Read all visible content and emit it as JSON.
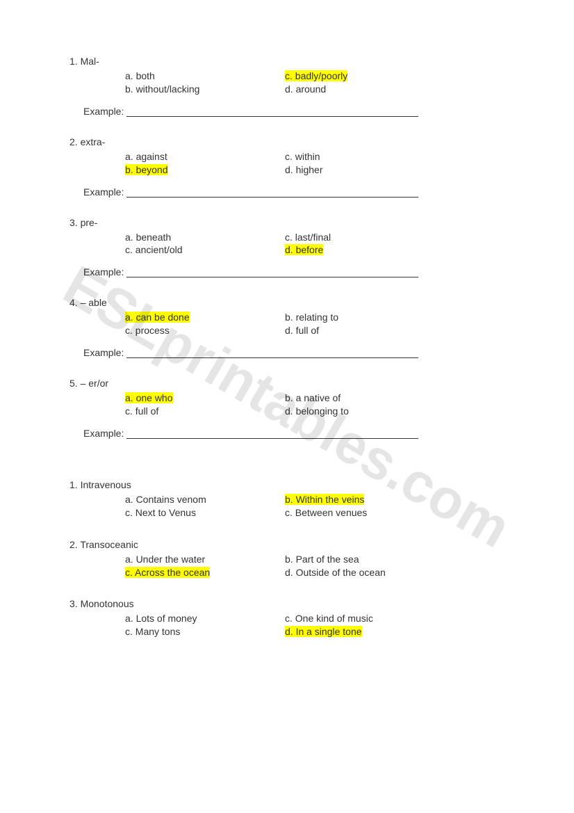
{
  "watermark": "ESLprintables.com",
  "sectionA": [
    {
      "num": "1.",
      "title": "Mal-",
      "left": [
        {
          "text": "a. both",
          "hl": false
        },
        {
          "text": "b. without/lacking",
          "hl": false
        }
      ],
      "right": [
        {
          "text": "c. badly/poorly",
          "hl": true
        },
        {
          "text": "d. around",
          "hl": false
        }
      ],
      "exampleLabel": "Example:"
    },
    {
      "num": "2.",
      "title": "extra-",
      "left": [
        {
          "text": "a. against",
          "hl": false
        },
        {
          "text": "b. beyond",
          "hl": true
        }
      ],
      "right": [
        {
          "text": "c. within",
          "hl": false
        },
        {
          "text": "d. higher",
          "hl": false
        }
      ],
      "exampleLabel": "Example:"
    },
    {
      "num": "3.",
      "title": "pre-",
      "left": [
        {
          "text": "a. beneath",
          "hl": false
        },
        {
          "text": "c. ancient/old",
          "hl": false
        }
      ],
      "right": [
        {
          "text": "c. last/final",
          "hl": false
        },
        {
          "text": "d. before",
          "hl": true
        }
      ],
      "exampleLabel": "Example:"
    },
    {
      "num": "4.",
      "title": "– able",
      "left": [
        {
          "text": "a. can be done",
          "hl": true
        },
        {
          "text": "c. process",
          "hl": false
        }
      ],
      "right": [
        {
          "text": "b. relating to",
          "hl": false
        },
        {
          "text": "d. full of",
          "hl": false
        }
      ],
      "exampleLabel": "Example:"
    },
    {
      "num": "5.",
      "title": " – er/or",
      "left": [
        {
          "text": "a. one who",
          "hl": true
        },
        {
          "text": "c. full of",
          "hl": false
        }
      ],
      "right": [
        {
          "text": "b. a native of",
          "hl": false
        },
        {
          "text": "d. belonging to",
          "hl": false
        }
      ],
      "exampleLabel": "Example:"
    }
  ],
  "sectionB": [
    {
      "num": "1.",
      "title": " Intravenous",
      "left": [
        {
          "text": "a. Contains venom",
          "hl": false
        },
        {
          "text": "c. Next to Venus",
          "hl": false
        }
      ],
      "right": [
        {
          "text": "b. Within the veins",
          "hl": true
        },
        {
          "text": "c. Between venues",
          "hl": false
        }
      ]
    },
    {
      "num": "2.",
      "title": " Transoceanic",
      "left": [
        {
          "text": "a. Under the water",
          "hl": false
        },
        {
          "text": "c. Across the ocean",
          "hl": true
        }
      ],
      "right": [
        {
          "text": "b. Part of the sea",
          "hl": false
        },
        {
          "text": "d. Outside of the ocean",
          "hl": false
        }
      ]
    },
    {
      "num": "3.",
      "title": "Monotonous",
      "left": [
        {
          "text": "a. Lots of money",
          "hl": false
        },
        {
          "text": "c. Many tons",
          "hl": false
        }
      ],
      "right": [
        {
          "text": "c. One kind of music",
          "hl": false
        },
        {
          "text": "d. In a single tone",
          "hl": true
        }
      ]
    }
  ]
}
